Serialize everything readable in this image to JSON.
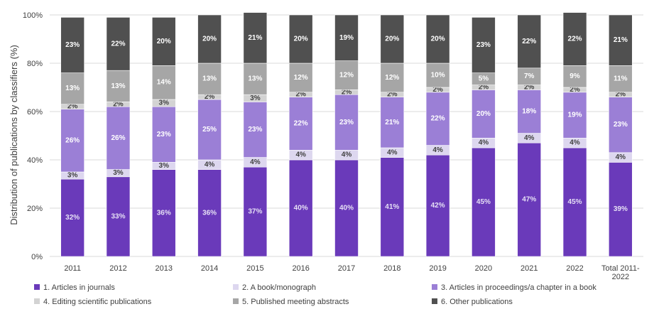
{
  "chart_data": {
    "type": "bar",
    "stacked": true,
    "title": "",
    "xlabel": "",
    "ylabel": "Distribution of publications by classifiers (%)",
    "ylim": [
      0,
      100
    ],
    "yticks": [
      "0%",
      "20%",
      "40%",
      "60%",
      "80%",
      "100%"
    ],
    "grid": true,
    "legend_position": "bottom",
    "categories": [
      "2011",
      "2012",
      "2013",
      "2014",
      "2015",
      "2016",
      "2017",
      "2018",
      "2019",
      "2020",
      "2021",
      "2022",
      "Total 2011-2022"
    ],
    "category_display_lines": [
      [
        "2011"
      ],
      [
        "2012"
      ],
      [
        "2013"
      ],
      [
        "2014"
      ],
      [
        "2015"
      ],
      [
        "2016"
      ],
      [
        "2017"
      ],
      [
        "2018"
      ],
      [
        "2019"
      ],
      [
        "2020"
      ],
      [
        "2021"
      ],
      [
        "2022"
      ],
      [
        "Total 2011-",
        "2022"
      ]
    ],
    "series": [
      {
        "name": "1. Articles in journals",
        "color": "#6a3aba",
        "label_color": "#e6e0f5",
        "values": [
          32,
          33,
          36,
          36,
          37,
          40,
          40,
          41,
          42,
          45,
          47,
          45,
          39
        ],
        "labels": [
          "32%",
          "33%",
          "36%",
          "36%",
          "37%",
          "40%",
          "40%",
          "41%",
          "42%",
          "45%",
          "47%",
          "45%",
          "39%"
        ]
      },
      {
        "name": "2. A book/monograph",
        "color": "#ddd7ef",
        "label_color": "#404040",
        "values": [
          3,
          3,
          3,
          4,
          4,
          4,
          4,
          4,
          4,
          4,
          4,
          4,
          4
        ],
        "labels": [
          "3%",
          "3%",
          "3%",
          "4%",
          "4%",
          "4%",
          "4%",
          "4%",
          "4%",
          "4%",
          "4%",
          "4%",
          "4%"
        ]
      },
      {
        "name": "3. Articles in proceedings/a chapter in a book",
        "color": "#9b7fd6",
        "label_color": "#ffffff",
        "values": [
          26,
          26,
          23,
          25,
          23,
          22,
          23,
          21,
          22,
          20,
          18,
          19,
          23
        ],
        "labels": [
          "26%",
          "26%",
          "23%",
          "25%",
          "23%",
          "22%",
          "23%",
          "21%",
          "22%",
          "20%",
          "18%",
          "19%",
          "23%"
        ]
      },
      {
        "name": "4. Editing scientific publications",
        "color": "#d3d3d3",
        "label_color": "#404040",
        "values": [
          2,
          2,
          3,
          2,
          3,
          2,
          2,
          2,
          2,
          2,
          2,
          2,
          2
        ],
        "labels": [
          "2%",
          "2%",
          "3%",
          "2%",
          "3%",
          "2%",
          "2%",
          "2%",
          "2%",
          "2%",
          "2%",
          "2%",
          "2%"
        ]
      },
      {
        "name": "5. Published meeting abstracts",
        "color": "#a6a6a6",
        "label_color": "#ffffff",
        "values": [
          13,
          13,
          14,
          13,
          13,
          12,
          12,
          12,
          10,
          5,
          7,
          9,
          11
        ],
        "labels": [
          "13%",
          "13%",
          "14%",
          "13%",
          "13%",
          "12%",
          "12%",
          "12%",
          "10%",
          "5%",
          "7%",
          "9%",
          "11%"
        ]
      },
      {
        "name": "6. Other publications",
        "color": "#505050",
        "label_color": "#ffffff",
        "values": [
          23,
          22,
          20,
          20,
          21,
          20,
          19,
          20,
          20,
          23,
          22,
          22,
          21
        ],
        "labels": [
          "23%",
          "22%",
          "20%",
          "20%",
          "21%",
          "20%",
          "19%",
          "20%",
          "20%",
          "23%",
          "22%",
          "22%",
          "21%"
        ]
      }
    ]
  }
}
